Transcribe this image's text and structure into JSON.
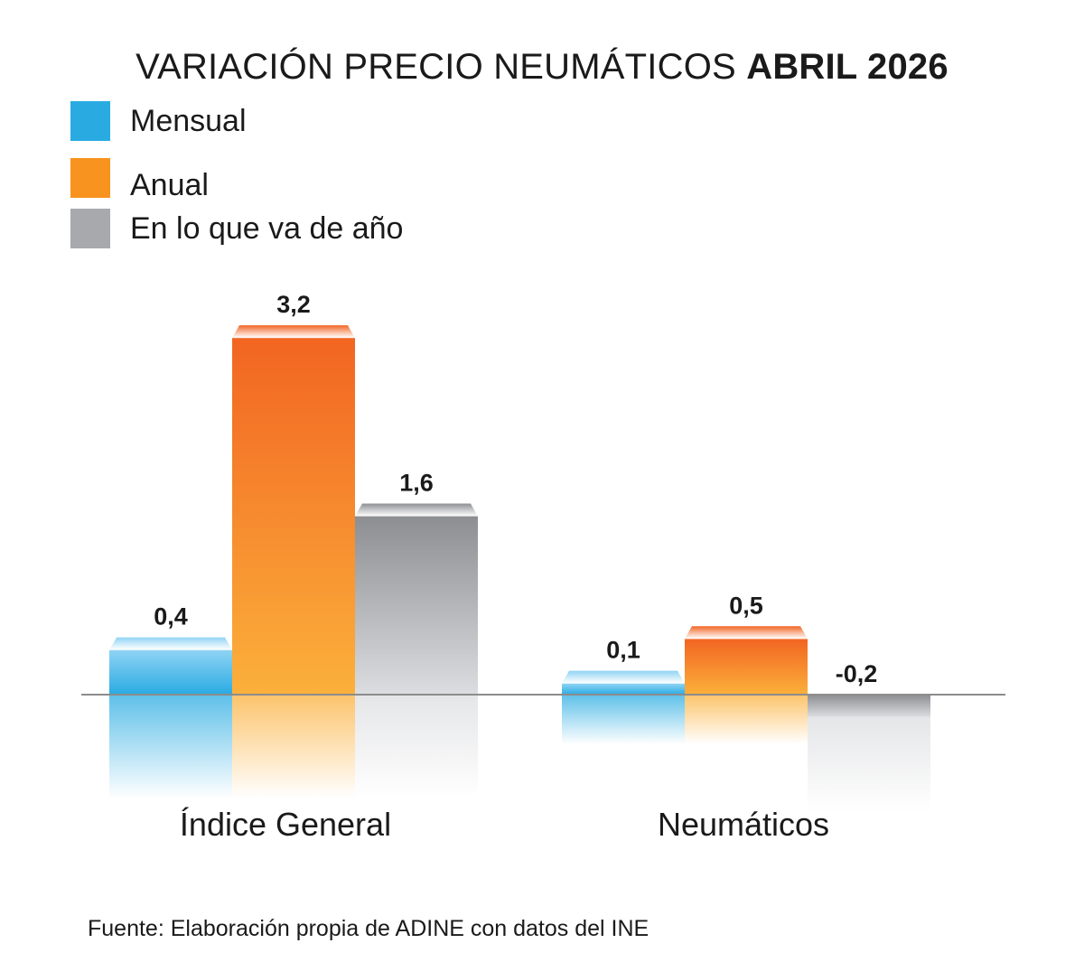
{
  "title": {
    "main": "VARIACIÓN PRECIO NEUMÁTICOS",
    "bold": "ABRIL 2026"
  },
  "legend": [
    {
      "label": "Mensual",
      "color": "#29abe2"
    },
    {
      "label": "Anual",
      "color": "#f7931e"
    },
    {
      "label": "En lo que va de año",
      "color": "#a7a9ac"
    }
  ],
  "source": "Fuente: Elaboración propia de ADINE con datos del INE",
  "chart_data": {
    "type": "bar",
    "categories": [
      "Índice General",
      "Neumáticos"
    ],
    "series": [
      {
        "name": "Mensual",
        "values": [
          0.4,
          0.1
        ],
        "labels": [
          "0,4",
          "0,1"
        ]
      },
      {
        "name": "Anual",
        "values": [
          3.2,
          0.5
        ],
        "labels": [
          "3,2",
          "0,5"
        ]
      },
      {
        "name": "En lo que va de año",
        "values": [
          1.6,
          -0.2
        ],
        "labels": [
          "1,6",
          "-0,2"
        ]
      }
    ],
    "ylim": [
      -0.3,
      3.3
    ],
    "grid": false,
    "legend_position": "top-left",
    "colors": {
      "Mensual": [
        "#8fd3f4",
        "#29abe2"
      ],
      "Anual": [
        "#f26522",
        "#fbb03b"
      ],
      "En lo que va de año": [
        "#8c8e91",
        "#dcdde0"
      ]
    }
  }
}
